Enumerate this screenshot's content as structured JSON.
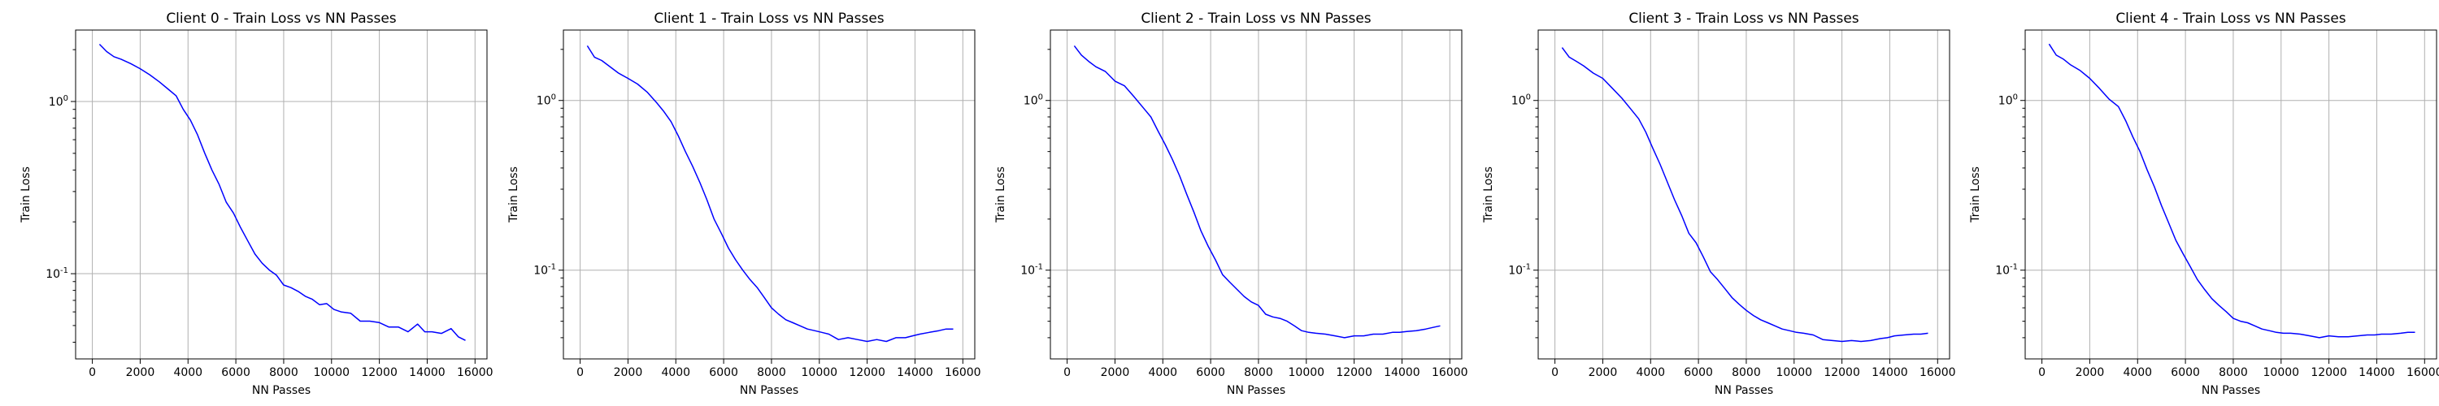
{
  "chart_data": [
    {
      "type": "line",
      "title": "Client 0 - Train Loss vs NN Passes",
      "xlabel": "NN Passes",
      "ylabel": "Train Loss",
      "yscale": "log",
      "xlim": [
        -700,
        16500
      ],
      "ylim": [
        0.032,
        2.6
      ],
      "xticks": [
        0,
        2000,
        4000,
        6000,
        8000,
        10000,
        12000,
        14000,
        16000
      ],
      "yticks": [
        0.1,
        1
      ],
      "yticklabels": [
        "10$^{-1}$",
        "10$^{0}$"
      ],
      "grid": true,
      "series": [
        {
          "color": "#0000ff",
          "x": [
            300,
            600,
            900,
            1200,
            1600,
            2000,
            2400,
            2800,
            3200,
            3500,
            3800,
            4100,
            4400,
            4700,
            5000,
            5300,
            5600,
            5900,
            6200,
            6500,
            6800,
            7100,
            7400,
            7700,
            8000,
            8300,
            8600,
            8900,
            9200,
            9500,
            9800,
            10100,
            10400,
            10800,
            11200,
            11600,
            12000,
            12400,
            12800,
            13200,
            13600,
            13900,
            14200,
            14600,
            15000,
            15300,
            15600
          ],
          "y": [
            2.15,
            1.95,
            1.82,
            1.76,
            1.66,
            1.55,
            1.43,
            1.3,
            1.17,
            1.08,
            0.9,
            0.78,
            0.64,
            0.5,
            0.4,
            0.33,
            0.26,
            0.225,
            0.185,
            0.155,
            0.13,
            0.115,
            0.105,
            0.098,
            0.086,
            0.083,
            0.079,
            0.074,
            0.071,
            0.066,
            0.067,
            0.062,
            0.06,
            0.059,
            0.053,
            0.053,
            0.052,
            0.049,
            0.049,
            0.046,
            0.051,
            0.046,
            0.046,
            0.045,
            0.048,
            0.043,
            0.041
          ]
        }
      ]
    },
    {
      "type": "line",
      "title": "Client 1 - Train Loss vs NN Passes",
      "xlabel": "NN Passes",
      "ylabel": "Train Loss",
      "yscale": "log",
      "xlim": [
        -700,
        16500
      ],
      "ylim": [
        0.03,
        2.6
      ],
      "xticks": [
        0,
        2000,
        4000,
        6000,
        8000,
        10000,
        12000,
        14000,
        16000
      ],
      "yticks": [
        0.1,
        1
      ],
      "yticklabels": [
        "10$^{-1}$",
        "10$^{0}$"
      ],
      "grid": true,
      "series": [
        {
          "color": "#0000ff",
          "x": [
            300,
            600,
            900,
            1200,
            1600,
            2000,
            2400,
            2800,
            3200,
            3500,
            3800,
            4100,
            4400,
            4700,
            5000,
            5300,
            5600,
            5900,
            6200,
            6500,
            6800,
            7100,
            7400,
            7700,
            8000,
            8300,
            8600,
            8900,
            9200,
            9500,
            9800,
            10100,
            10400,
            10800,
            11200,
            11600,
            12000,
            12400,
            12800,
            13200,
            13600,
            13900,
            14200,
            14600,
            15000,
            15300,
            15600
          ],
          "y": [
            2.1,
            1.8,
            1.72,
            1.6,
            1.45,
            1.35,
            1.25,
            1.12,
            0.97,
            0.86,
            0.75,
            0.62,
            0.5,
            0.41,
            0.33,
            0.26,
            0.2,
            0.165,
            0.135,
            0.115,
            0.1,
            0.088,
            0.079,
            0.069,
            0.06,
            0.055,
            0.051,
            0.049,
            0.047,
            0.045,
            0.044,
            0.043,
            0.042,
            0.039,
            0.04,
            0.039,
            0.038,
            0.039,
            0.038,
            0.04,
            0.04,
            0.041,
            0.042,
            0.043,
            0.044,
            0.045,
            0.045
          ]
        }
      ]
    },
    {
      "type": "line",
      "title": "Client 2 - Train Loss vs NN Passes",
      "xlabel": "NN Passes",
      "ylabel": "Train Loss",
      "yscale": "log",
      "xlim": [
        -700,
        16500
      ],
      "ylim": [
        0.03,
        2.6
      ],
      "xticks": [
        0,
        2000,
        4000,
        6000,
        8000,
        10000,
        12000,
        14000,
        16000
      ],
      "yticks": [
        0.1,
        1
      ],
      "yticklabels": [
        "10$^{-1}$",
        "10$^{0}$"
      ],
      "grid": true,
      "series": [
        {
          "color": "#0000ff",
          "x": [
            300,
            600,
            900,
            1200,
            1600,
            2000,
            2400,
            2800,
            3200,
            3500,
            3800,
            4100,
            4400,
            4700,
            5000,
            5300,
            5600,
            5900,
            6200,
            6500,
            6800,
            7100,
            7400,
            7700,
            8000,
            8300,
            8600,
            8900,
            9200,
            9500,
            9800,
            10100,
            10400,
            10800,
            11200,
            11600,
            12000,
            12400,
            12800,
            13200,
            13600,
            13900,
            14200,
            14600,
            15000,
            15300,
            15600
          ],
          "y": [
            2.1,
            1.85,
            1.7,
            1.58,
            1.48,
            1.3,
            1.22,
            1.05,
            0.9,
            0.8,
            0.66,
            0.55,
            0.45,
            0.36,
            0.28,
            0.22,
            0.17,
            0.138,
            0.115,
            0.094,
            0.085,
            0.077,
            0.07,
            0.065,
            0.062,
            0.055,
            0.053,
            0.052,
            0.05,
            0.047,
            0.044,
            0.043,
            0.0425,
            0.042,
            0.041,
            0.04,
            0.041,
            0.041,
            0.042,
            0.042,
            0.043,
            0.043,
            0.0435,
            0.044,
            0.045,
            0.046,
            0.047
          ]
        }
      ]
    },
    {
      "type": "line",
      "title": "Client 3 - Train Loss vs NN Passes",
      "xlabel": "NN Passes",
      "ylabel": "Train Loss",
      "yscale": "log",
      "xlim": [
        -700,
        16500
      ],
      "ylim": [
        0.03,
        2.6
      ],
      "xticks": [
        0,
        2000,
        4000,
        6000,
        8000,
        10000,
        12000,
        14000,
        16000
      ],
      "yticks": [
        0.1,
        1
      ],
      "yticklabels": [
        "10$^{-1}$",
        "10$^{0}$"
      ],
      "grid": true,
      "series": [
        {
          "color": "#0000ff",
          "x": [
            300,
            600,
            900,
            1200,
            1600,
            2000,
            2400,
            2800,
            3200,
            3500,
            3800,
            4100,
            4400,
            4700,
            5000,
            5300,
            5600,
            5900,
            6200,
            6500,
            6800,
            7100,
            7400,
            7700,
            8000,
            8300,
            8600,
            8900,
            9200,
            9500,
            9800,
            10100,
            10400,
            10800,
            11200,
            11600,
            12000,
            12400,
            12800,
            13200,
            13600,
            13900,
            14200,
            14600,
            15000,
            15300,
            15600
          ],
          "y": [
            2.05,
            1.8,
            1.7,
            1.6,
            1.45,
            1.35,
            1.18,
            1.03,
            0.88,
            0.78,
            0.65,
            0.52,
            0.42,
            0.33,
            0.26,
            0.21,
            0.165,
            0.145,
            0.12,
            0.098,
            0.088,
            0.078,
            0.069,
            0.063,
            0.058,
            0.054,
            0.051,
            0.049,
            0.047,
            0.045,
            0.044,
            0.043,
            0.0425,
            0.0415,
            0.039,
            0.0385,
            0.038,
            0.0385,
            0.038,
            0.0385,
            0.0395,
            0.04,
            0.041,
            0.0415,
            0.042,
            0.042,
            0.0425
          ]
        }
      ]
    },
    {
      "type": "line",
      "title": "Client 4 - Train Loss vs NN Passes",
      "xlabel": "NN Passes",
      "ylabel": "Train Loss",
      "yscale": "log",
      "xlim": [
        -700,
        16500
      ],
      "ylim": [
        0.03,
        2.6
      ],
      "xticks": [
        0,
        2000,
        4000,
        6000,
        8000,
        10000,
        12000,
        14000,
        16000
      ],
      "yticks": [
        0.1,
        1
      ],
      "yticklabels": [
        "10$^{-1}$",
        "10$^{0}$"
      ],
      "grid": true,
      "series": [
        {
          "color": "#0000ff",
          "x": [
            300,
            600,
            900,
            1200,
            1600,
            2000,
            2400,
            2800,
            3200,
            3500,
            3800,
            4100,
            4400,
            4700,
            5000,
            5300,
            5600,
            5900,
            6200,
            6500,
            6800,
            7100,
            7400,
            7700,
            8000,
            8300,
            8600,
            8900,
            9200,
            9500,
            9800,
            10100,
            10400,
            10800,
            11200,
            11600,
            12000,
            12400,
            12800,
            13200,
            13600,
            13900,
            14200,
            14600,
            15000,
            15300,
            15600
          ],
          "y": [
            2.15,
            1.85,
            1.75,
            1.62,
            1.5,
            1.35,
            1.18,
            1.02,
            0.92,
            0.76,
            0.61,
            0.5,
            0.39,
            0.31,
            0.24,
            0.19,
            0.15,
            0.125,
            0.105,
            0.088,
            0.077,
            0.068,
            0.062,
            0.057,
            0.052,
            0.05,
            0.049,
            0.047,
            0.045,
            0.044,
            0.043,
            0.0425,
            0.0425,
            0.042,
            0.041,
            0.04,
            0.041,
            0.0405,
            0.0405,
            0.041,
            0.0415,
            0.0415,
            0.042,
            0.042,
            0.0425,
            0.043,
            0.043
          ]
        }
      ]
    }
  ]
}
